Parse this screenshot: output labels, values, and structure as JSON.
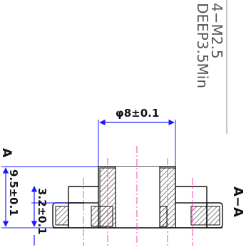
{
  "note": {
    "thread": "4−M2.5",
    "depth": "DEEP3.5Min"
  },
  "dimensions": {
    "diameter": "φ8±0.1",
    "height": "9.5±0.1",
    "flange": "3.2±0.1"
  },
  "section_marker_left": "A",
  "section_label": "A−A",
  "colors": {
    "dimension": "#1a1aff",
    "centerline": "#ff3fb0",
    "outline": "#111111",
    "hatch": "#2b2b2b"
  }
}
